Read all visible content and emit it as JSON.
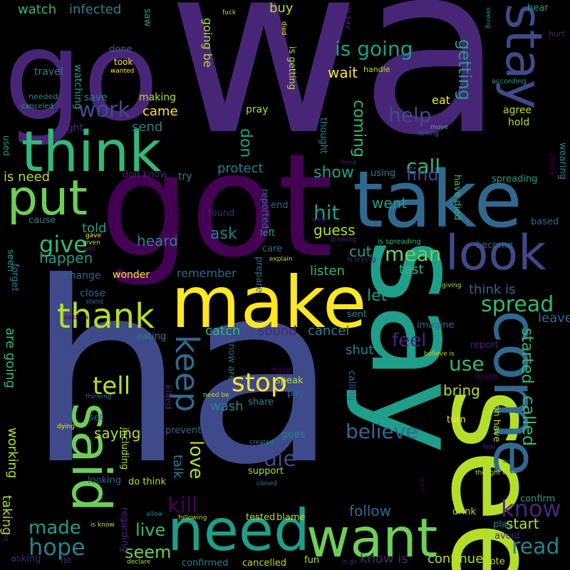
{
  "palette": {
    "background": "#000000",
    "dark_purple": "#440154",
    "purple": "#482677",
    "indigo": "#3e4a89",
    "blue": "#31688e",
    "teal": "#26828e",
    "green_teal": "#1f9e89",
    "green": "#35b779",
    "light_green": "#6ece58",
    "lime": "#b5de2b",
    "yellow": "#fde725"
  },
  "words": {
    "wa": "wa",
    "ha": "ha",
    "got": "got",
    "go": "go",
    "say": "say",
    "see": "see",
    "take": "take",
    "make": "make",
    "think": "think",
    "need": "need",
    "want": "want",
    "come": "come",
    "said": "said",
    "put": "put",
    "look": "look",
    "stay": "stay",
    "thank": "thank",
    "keep": "keep",
    "stop": "stop",
    "tell": "tell",
    "know": "know",
    "read": "read",
    "spread": "spread",
    "believe": "believe",
    "kill": "kill",
    "die": "die",
    "love": "love",
    "hope": "hope",
    "made": "made",
    "live": "live",
    "seem": "seem",
    "give": "give",
    "mean": "mean",
    "work": "work",
    "help": "help",
    "getting": "getting",
    "is_going": "is going",
    "call": "call",
    "find": "find",
    "show": "show",
    "hit": "hit",
    "feel": "feel",
    "use": "use",
    "coming": "coming",
    "called": "called",
    "started": "started",
    "buy": "buy",
    "watch": "watch",
    "infected": "infected",
    "wait": "wait",
    "came": "came",
    "send": "send",
    "don": "don",
    "protect": "protect",
    "ask": "ask",
    "heard": "heard",
    "happen": "happen",
    "told": "told",
    "is_need": "is need",
    "went": "went",
    "guess": "guess",
    "cut": "cut",
    "test": "test",
    "listen": "listen",
    "let": "let",
    "remember": "remember",
    "catch": "catch",
    "sound": "sound",
    "cancel": "cancel",
    "shut": "shut",
    "bring": "bring",
    "think_is": "think is",
    "leave": "leave",
    "wash": "wash",
    "talk": "talk",
    "saying": "saying",
    "working": "working",
    "taking": "taking",
    "are_going": "are going",
    "follow": "follow",
    "start": "start",
    "continue": "continue",
    "know_is": "know is",
    "going_be": "going be",
    "agree": "agree",
    "hold": "hold",
    "eat": "eat",
    "done": "done",
    "took": "took",
    "travel": "travel",
    "watching": "watching",
    "save": "save",
    "making": "making",
    "fight": "fight",
    "pray": "pray",
    "try": "try",
    "don_know": "don know",
    "spreading": "spreading",
    "check": "check",
    "wearing": "wearing",
    "used": "used",
    "hear": "hear",
    "saw": "saw",
    "fuck": "fuck",
    "died": "died",
    "is_say": "is say",
    "seeing": "seeing",
    "hurt": "hurt",
    "according": "according",
    "happened": "happened",
    "handle": "handle",
    "is_getting": "is getting",
    "wanted": "wanted",
    "needed": "needed",
    "canceled": "canceled",
    "thought": "thought",
    "telling": "telling",
    "move": "move",
    "living": "living",
    "using": "using",
    "have_died": "have died",
    "based": "based",
    "become": "become",
    "found": "found",
    "reported": "reported",
    "end": "end",
    "cause": "cause",
    "gave": "gave",
    "given": "given",
    "win": "win",
    "left": "left",
    "care": "care",
    "is_spreading": "is spreading",
    "drinking": "drinking",
    "wear": "wear",
    "is_trying": "is trying",
    "says_is": "says is",
    "seen": "seen",
    "forget": "forget",
    "change": "change",
    "wonder": "wonder",
    "prepare": "prepare",
    "explain": "explain",
    "close": "close",
    "stand": "stand",
    "said_wa": "said wa",
    "giving": "giving",
    "sent": "sent",
    "eating": "eating",
    "imagine": "imagine",
    "report": "report",
    "believe_is": "believe is",
    "hate": "hate",
    "speak": "speak",
    "pay": "pay",
    "learn": "learn",
    "calling": "calling",
    "know_are": "know are",
    "killed": "killed",
    "need_be": "need be",
    "share": "share",
    "thinking": "thinking",
    "set": "set",
    "turn": "turn",
    "don_have": "don have",
    "dying": "dying",
    "prevent": "prevent",
    "goes": "goes",
    "lead": "lead",
    "created": "created",
    "support": "support",
    "fear": "fear",
    "including": "including",
    "lost": "lost",
    "thought_was": "thought was",
    "closed": "closed",
    "wish": "wish",
    "looking": "looking",
    "do_think": "do think",
    "confirm": "confirm",
    "regarding": "regarding",
    "following": "following",
    "tested": "tested",
    "blame": "blame",
    "allow": "allow",
    "drink": "drink",
    "play": "play",
    "avoid": "avoid",
    "traveling": "traveling",
    "is_know": "is know",
    "asking": "asking",
    "lie": "lie",
    "declare": "declare",
    "confirmed": "confirmed",
    "cancelled": "cancelled",
    "fun": "fun",
    "is_go": "is go",
    "vote": "vote"
  }
}
